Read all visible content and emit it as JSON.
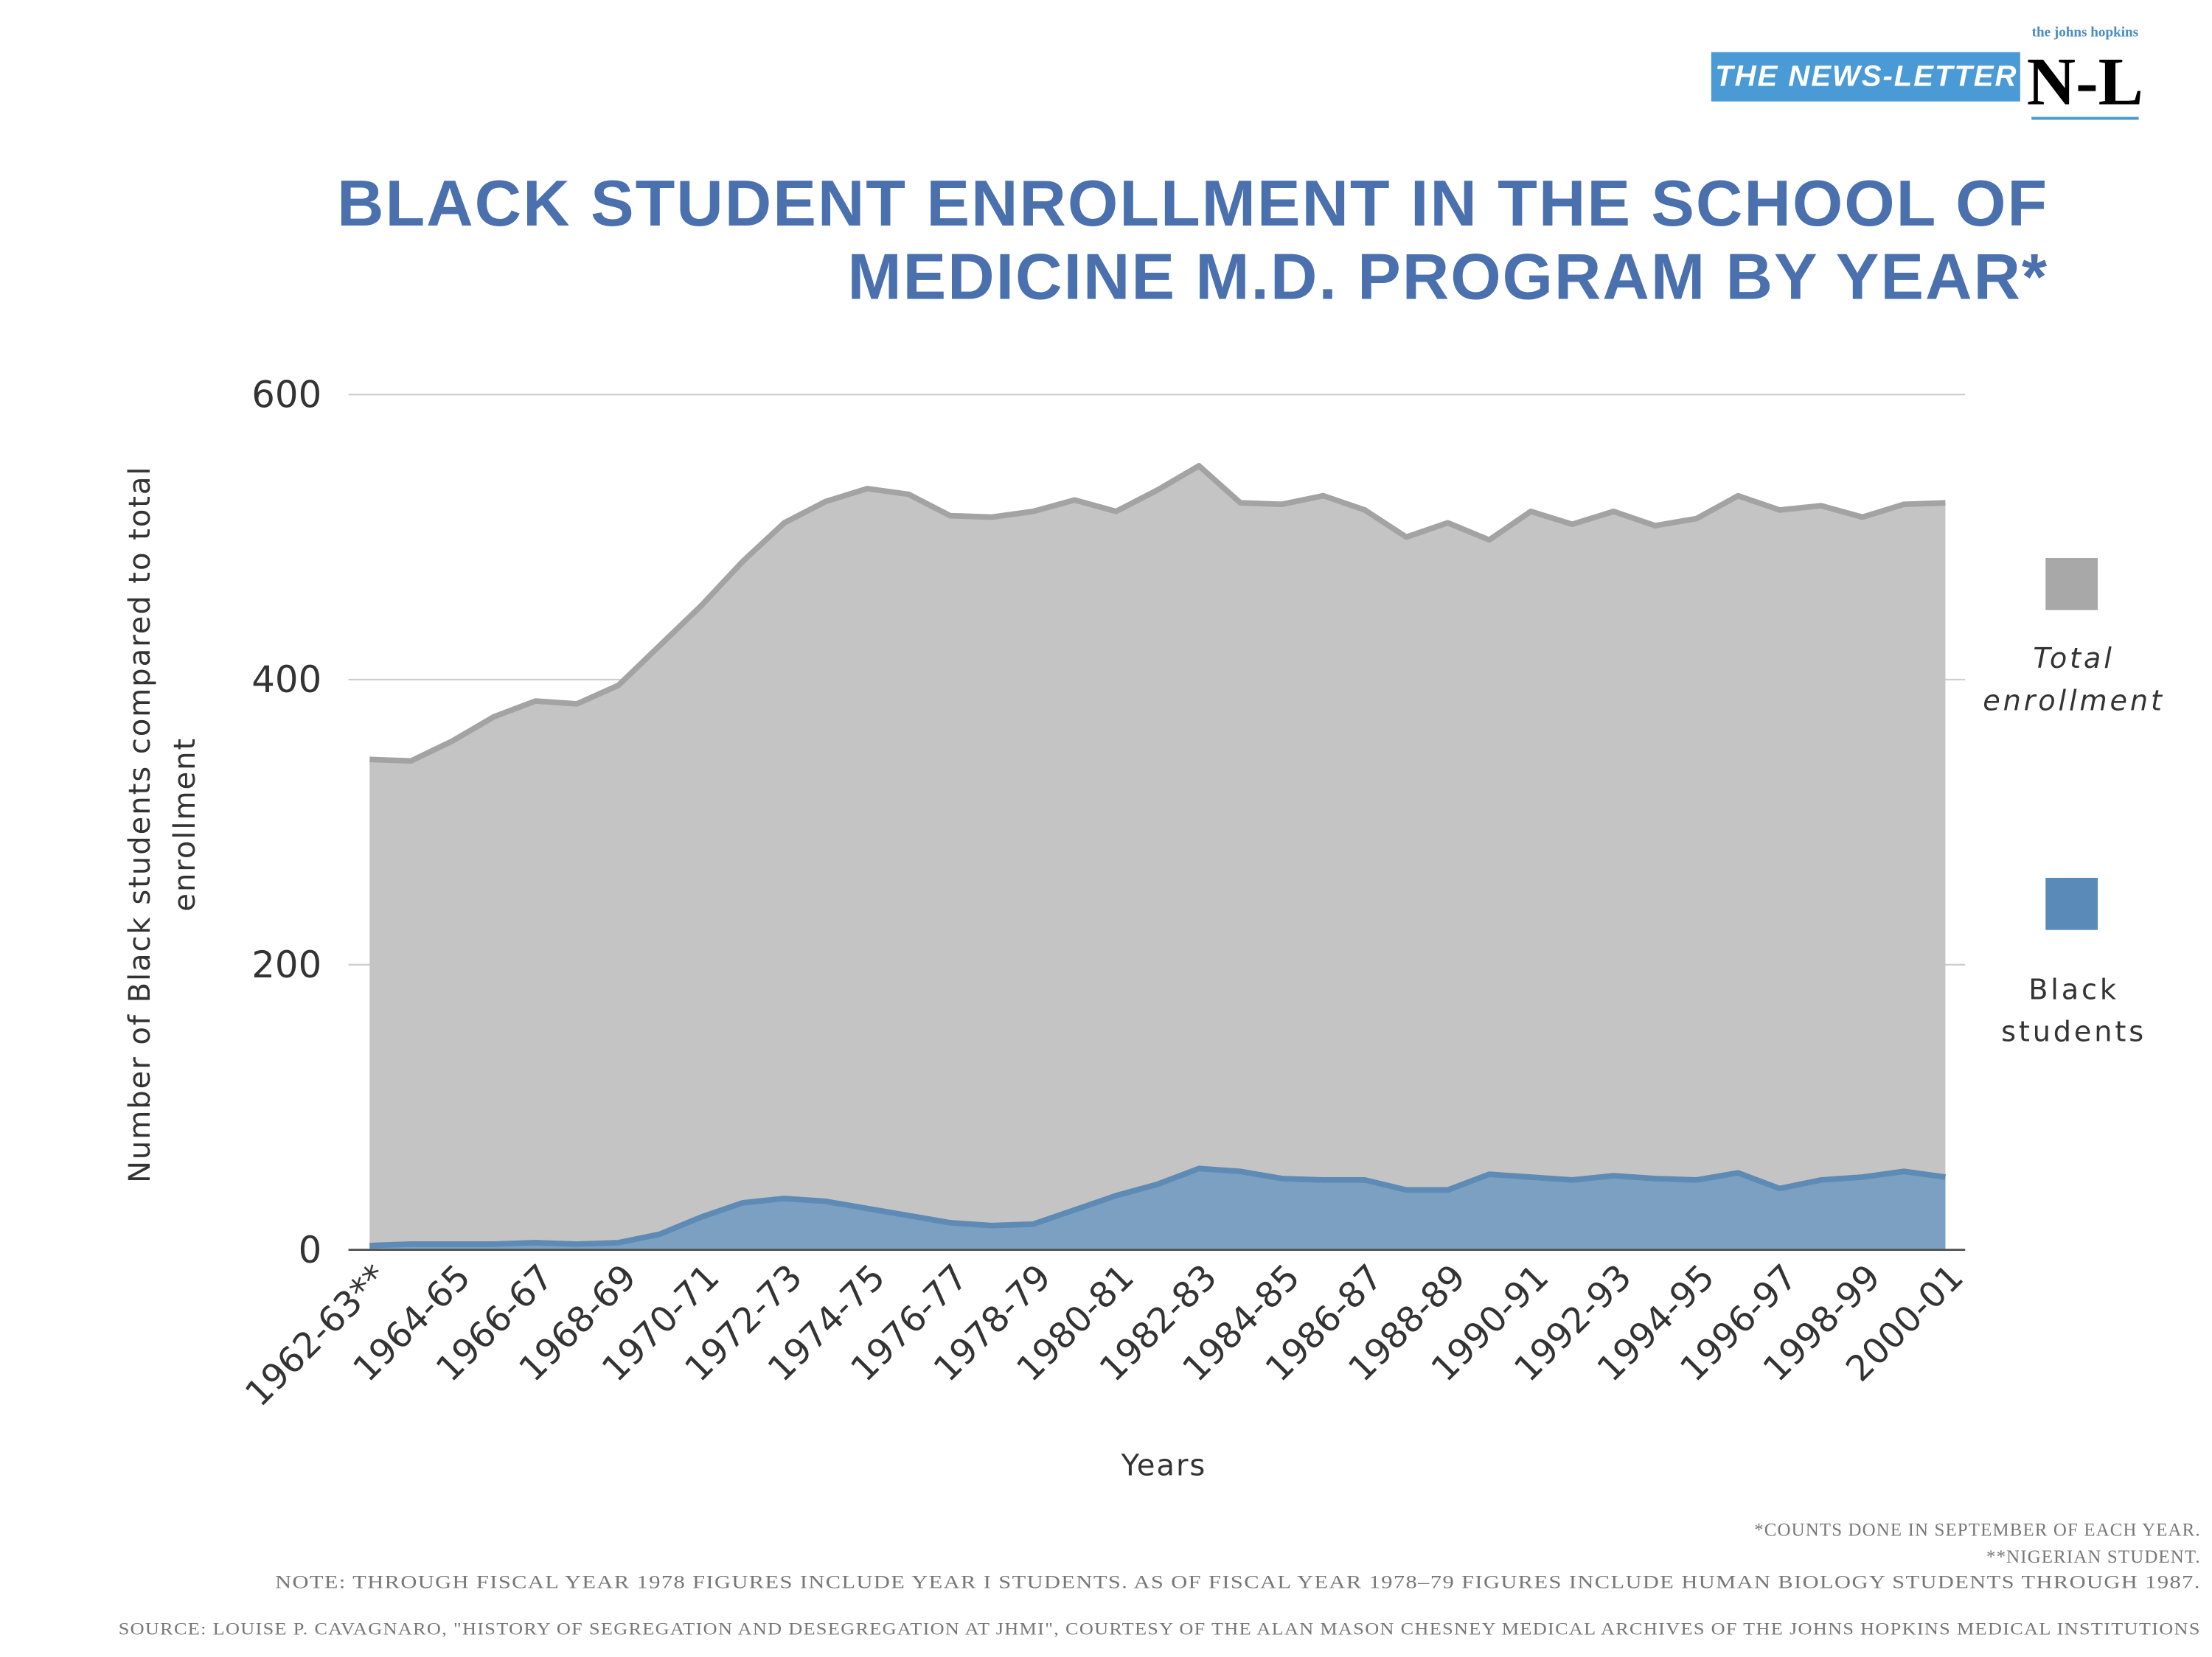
{
  "header": {
    "publisher_tagline": "the johns hopkins",
    "publisher_name": "THE NEWS-LETTER",
    "publisher_mark": "N-L"
  },
  "chart_data": {
    "type": "area",
    "title": "BLACK STUDENT ENROLLMENT IN THE SCHOOL OF MEDICINE M.D. PROGRAM BY YEAR*",
    "x_label": "Years",
    "y_label": "Number of Black students compared to total enrollment",
    "categories": [
      "1962-63**",
      null,
      "1964-65",
      null,
      "1966-67",
      null,
      "1968-69",
      null,
      "1970-71",
      null,
      "1972-73",
      null,
      "1974-75",
      null,
      "1976-77",
      null,
      "1978-79",
      null,
      "1980-81",
      null,
      "1982-83",
      null,
      "1984-85",
      null,
      "1986-87",
      null,
      "1988-89",
      null,
      "1990-91",
      null,
      "1992-93",
      null,
      "1994-95",
      null,
      "1996-97",
      null,
      "1998-99",
      null,
      "2000-01"
    ],
    "series": [
      {
        "name": "Total enrollment",
        "color": "#c4c4c4",
        "line_color": "#a3a3a3",
        "legend_color": "#a8a8a8",
        "values": [
          344,
          343,
          357,
          374,
          385,
          383,
          396,
          424,
          452,
          483,
          510,
          525,
          534,
          530,
          515,
          514,
          518,
          526,
          518,
          533,
          550,
          524,
          523,
          529,
          519,
          500,
          510,
          498,
          518,
          509,
          518,
          508,
          513,
          529,
          519,
          522,
          514,
          523,
          524
        ]
      },
      {
        "name": "Black students",
        "color": "#7ba0c2",
        "line_color": "#5d8bb6",
        "legend_color": "#5a8ab8",
        "values": [
          3,
          4,
          4,
          4,
          5,
          4,
          5,
          11,
          23,
          33,
          36,
          34,
          29,
          24,
          19,
          17,
          18,
          28,
          38,
          46,
          57,
          55,
          50,
          49,
          49,
          42,
          42,
          53,
          51,
          49,
          52,
          50,
          49,
          54,
          43,
          49,
          51,
          55,
          51
        ]
      }
    ],
    "ylim": [
      0,
      600
    ],
    "yticks": [
      0,
      200,
      400,
      600
    ],
    "grid": true,
    "legend": "right",
    "stacked": false
  },
  "footer": {
    "notes": [
      "*COUNTS DONE IN SEPTEMBER OF EACH YEAR.",
      "**NIGERIAN STUDENT.",
      "NOTE: THROUGH FISCAL YEAR 1978 FIGURES INCLUDE YEAR I STUDENTS. AS OF FISCAL YEAR 1978–79 FIGURES INCLUDE HUMAN BIOLOGY STUDENTS THROUGH 1987."
    ],
    "source": "SOURCE: LOUISE P. CAVAGNARO, \"HISTORY OF SEGREGATION AND DESEGREGATION AT JHMI\", COURTESY OF THE ALAN MASON CHESNEY MEDICAL ARCHIVES OF THE JOHNS HOPKINS MEDICAL INSTITUTIONS"
  }
}
